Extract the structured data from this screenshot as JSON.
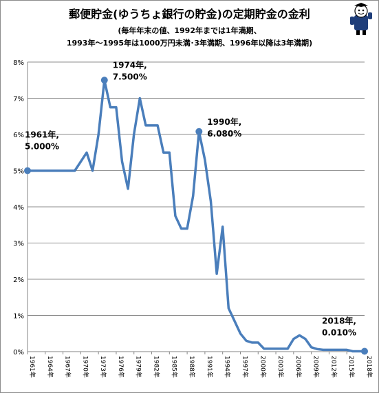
{
  "title": {
    "line1": "郵便貯金(ゆうちょ銀行の貯金)の定期貯金の金利",
    "line2": "(毎年年末の値、1992年までは1年満期、",
    "line3": "1993年～1995年は1000万円未満･3年満期、1996年以降は3年満期)"
  },
  "colors": {
    "series": "#4a7ebb",
    "grid": "#8c8c8c",
    "axis": "#868686",
    "text": "#000000"
  },
  "chart_data": {
    "type": "line",
    "x": [
      1961,
      1962,
      1963,
      1964,
      1965,
      1966,
      1967,
      1968,
      1969,
      1970,
      1971,
      1972,
      1973,
      1974,
      1975,
      1976,
      1977,
      1978,
      1979,
      1980,
      1981,
      1982,
      1983,
      1984,
      1985,
      1986,
      1987,
      1988,
      1989,
      1990,
      1991,
      1992,
      1993,
      1994,
      1995,
      1996,
      1997,
      1998,
      1999,
      2000,
      2001,
      2002,
      2003,
      2004,
      2005,
      2006,
      2007,
      2008,
      2009,
      2010,
      2011,
      2012,
      2013,
      2014,
      2015,
      2016,
      2017,
      2018
    ],
    "series": [
      {
        "values": [
          5.0,
          5.0,
          5.0,
          5.0,
          5.0,
          5.0,
          5.0,
          5.0,
          5.0,
          5.25,
          5.5,
          5.0,
          6.0,
          7.5,
          6.75,
          6.75,
          5.25,
          4.5,
          6.0,
          7.0,
          6.25,
          6.25,
          6.25,
          5.5,
          5.5,
          3.75,
          3.4,
          3.4,
          4.3,
          6.08,
          5.3,
          4.15,
          2.15,
          3.45,
          1.2,
          0.85,
          0.5,
          0.3,
          0.25,
          0.25,
          0.08,
          0.08,
          0.08,
          0.08,
          0.08,
          0.35,
          0.45,
          0.35,
          0.12,
          0.07,
          0.05,
          0.05,
          0.05,
          0.05,
          0.05,
          0.01,
          0.01,
          0.01
        ]
      }
    ],
    "xticks": [
      "1961年",
      "1964年",
      "1967年",
      "1970年",
      "1973年",
      "1976年",
      "1979年",
      "1982年",
      "1985年",
      "1988年",
      "1991年",
      "1994年",
      "1997年",
      "2000年",
      "2003年",
      "2006年",
      "2009年",
      "2012年",
      "2015年",
      "2018年"
    ],
    "yticks": [
      "0%",
      "1%",
      "2%",
      "3%",
      "4%",
      "5%",
      "6%",
      "7%",
      "8%"
    ],
    "ylim": [
      0,
      8
    ],
    "xlim": [
      1961,
      2018
    ],
    "grid": true,
    "legend": "none",
    "annotations": [
      {
        "year": 1961,
        "value": 5.0,
        "line1": "1961年,",
        "line2": "5.000%"
      },
      {
        "year": 1974,
        "value": 7.5,
        "line1": "1974年,",
        "line2": "7.500%"
      },
      {
        "year": 1990,
        "value": 6.08,
        "line1": "1990年,",
        "line2": "6.080%"
      },
      {
        "year": 2018,
        "value": 0.01,
        "line1": "2018年,",
        "line2": "0.010%"
      }
    ]
  }
}
